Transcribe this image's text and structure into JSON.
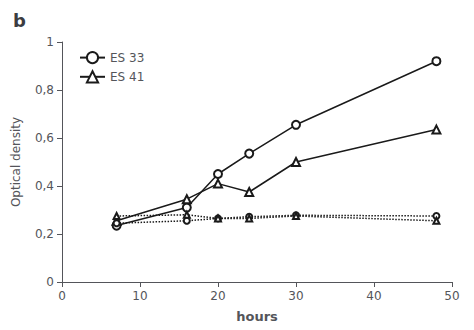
{
  "chart_data": {
    "type": "line",
    "title": "b",
    "xlabel": "hours",
    "ylabel": "Optical density",
    "xlim": [
      0,
      50
    ],
    "ylim": [
      0,
      1.0
    ],
    "xticks": [
      0,
      10,
      20,
      30,
      40,
      50
    ],
    "yticks": [
      0,
      {
        "value": 0.2,
        "label": "0,2"
      },
      {
        "value": 0.4,
        "label": "0,4"
      },
      {
        "value": 0.6,
        "label": "0,6"
      },
      {
        "value": 0.8,
        "label": "0,8"
      },
      1
    ],
    "grid": false,
    "legend": "upper left",
    "x": [
      7,
      16,
      20,
      24,
      30,
      48
    ],
    "series": [
      {
        "name": "ES 33",
        "color": "#1a1a1a",
        "marker": "circle",
        "line_style": "solid",
        "values": [
          0.235,
          0.31,
          0.45,
          0.535,
          0.655,
          0.92
        ]
      },
      {
        "name": "ES 41",
        "color": "#1a1a1a",
        "marker": "triangle",
        "line_style": "solid",
        "values": [
          0.255,
          0.345,
          0.41,
          0.375,
          0.5,
          0.635
        ]
      },
      {
        "color": "#1a1a1a",
        "marker": "circle",
        "line_style": "dotted",
        "values": [
          0.245,
          0.255,
          0.265,
          0.272,
          0.278,
          0.275
        ]
      },
      {
        "color": "#1a1a1a",
        "marker": "triangle",
        "line_style": "dotted",
        "values": [
          0.275,
          0.28,
          0.265,
          0.265,
          0.275,
          0.255
        ]
      }
    ]
  }
}
